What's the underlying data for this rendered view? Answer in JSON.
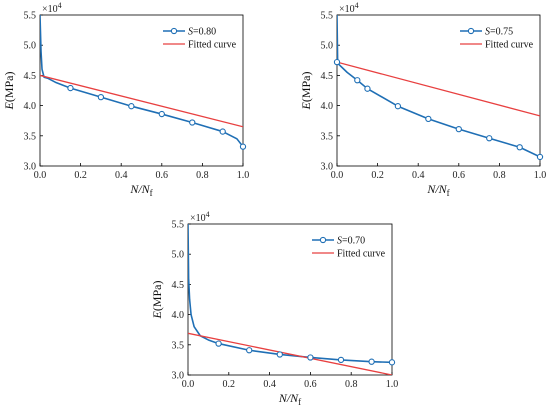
{
  "chart_data": [
    {
      "type": "line",
      "title": "",
      "xlabel": "N/N_f",
      "ylabel": "E(MPa)",
      "multiplier": "×10",
      "multiplier_exp": "4",
      "xlim": [
        0.0,
        1.0
      ],
      "ylim": [
        3.0,
        5.5
      ],
      "x_ticks": [
        "0.0",
        "0.2",
        "0.4",
        "0.6",
        "0.8",
        "1.0"
      ],
      "y_ticks": [
        "3.0",
        "3.5",
        "4.0",
        "4.5",
        "5.0",
        "5.5"
      ],
      "grid": false,
      "legend_position": "top-right",
      "series": [
        {
          "name": "S=0.80",
          "name_prefix": "S",
          "name_suffix": "=0.80",
          "marker": "circle",
          "color": "#1f6fb5",
          "x": [
            0.0,
            0.005,
            0.01,
            0.02,
            0.04,
            0.08,
            0.15,
            0.3,
            0.45,
            0.6,
            0.75,
            0.9,
            0.97,
            1.0
          ],
          "y": [
            5.5,
            4.9,
            4.6,
            4.47,
            4.45,
            4.38,
            4.29,
            4.14,
            3.99,
            3.86,
            3.72,
            3.57,
            3.45,
            3.32
          ],
          "marker_x": [
            0.15,
            0.3,
            0.45,
            0.6,
            0.75,
            0.9,
            1.0
          ],
          "marker_y": [
            4.29,
            4.14,
            3.99,
            3.86,
            3.72,
            3.57,
            3.32
          ]
        },
        {
          "name": "Fitted curve",
          "color": "#e84040",
          "x": [
            0.0,
            1.0
          ],
          "y": [
            4.5,
            3.65
          ]
        }
      ]
    },
    {
      "type": "line",
      "title": "",
      "xlabel": "N/N_f",
      "ylabel": "E(MPa)",
      "multiplier": "×10",
      "multiplier_exp": "4",
      "xlim": [
        0.0,
        1.0
      ],
      "ylim": [
        3.0,
        5.5
      ],
      "x_ticks": [
        "0.0",
        "0.2",
        "0.4",
        "0.6",
        "0.8",
        "1.0"
      ],
      "y_ticks": [
        "3.0",
        "3.5",
        "4.0",
        "4.5",
        "5.0",
        "5.5"
      ],
      "grid": false,
      "legend_position": "top-right",
      "series": [
        {
          "name": "S=0.75",
          "name_prefix": "S",
          "name_suffix": "=0.75",
          "marker": "circle",
          "color": "#1f6fb5",
          "x": [
            0.0,
            0.003,
            0.01,
            0.05,
            0.1,
            0.15,
            0.3,
            0.45,
            0.6,
            0.75,
            0.9,
            1.0
          ],
          "y": [
            5.5,
            4.75,
            4.68,
            4.55,
            4.42,
            4.28,
            3.99,
            3.78,
            3.61,
            3.46,
            3.31,
            3.15
          ],
          "marker_x": [
            0.0,
            0.1,
            0.15,
            0.3,
            0.45,
            0.6,
            0.75,
            0.9,
            1.0
          ],
          "marker_y": [
            4.72,
            4.42,
            4.28,
            3.99,
            3.78,
            3.61,
            3.46,
            3.31,
            3.15
          ]
        },
        {
          "name": "Fitted curve",
          "color": "#e84040",
          "x": [
            0.0,
            1.0
          ],
          "y": [
            4.72,
            3.83
          ]
        }
      ]
    },
    {
      "type": "line",
      "title": "",
      "xlabel": "N/N_f",
      "ylabel": "E(MPa)",
      "multiplier": "×10",
      "multiplier_exp": "4",
      "xlim": [
        0.0,
        1.0
      ],
      "ylim": [
        3.0,
        5.5
      ],
      "x_ticks": [
        "0.0",
        "0.2",
        "0.4",
        "0.6",
        "0.8",
        "1.0"
      ],
      "y_ticks": [
        "3.0",
        "3.5",
        "4.0",
        "4.5",
        "5.0",
        "5.5"
      ],
      "grid": false,
      "legend_position": "top-right",
      "series": [
        {
          "name": "S=0.70",
          "name_prefix": "S",
          "name_suffix": "=0.70",
          "marker": "circle",
          "color": "#1f6fb5",
          "x": [
            0.0,
            0.003,
            0.008,
            0.015,
            0.03,
            0.06,
            0.1,
            0.15,
            0.3,
            0.45,
            0.6,
            0.75,
            0.9,
            1.0
          ],
          "y": [
            5.5,
            4.6,
            4.25,
            4.0,
            3.8,
            3.65,
            3.58,
            3.52,
            3.41,
            3.34,
            3.29,
            3.25,
            3.22,
            3.21
          ],
          "marker_x": [
            0.15,
            0.3,
            0.45,
            0.6,
            0.75,
            0.9,
            1.0
          ],
          "marker_y": [
            3.52,
            3.41,
            3.34,
            3.29,
            3.25,
            3.22,
            3.21
          ]
        },
        {
          "name": "Fitted curve",
          "color": "#e84040",
          "x": [
            0.0,
            1.0
          ],
          "y": [
            3.69,
            3.0
          ]
        }
      ]
    }
  ]
}
